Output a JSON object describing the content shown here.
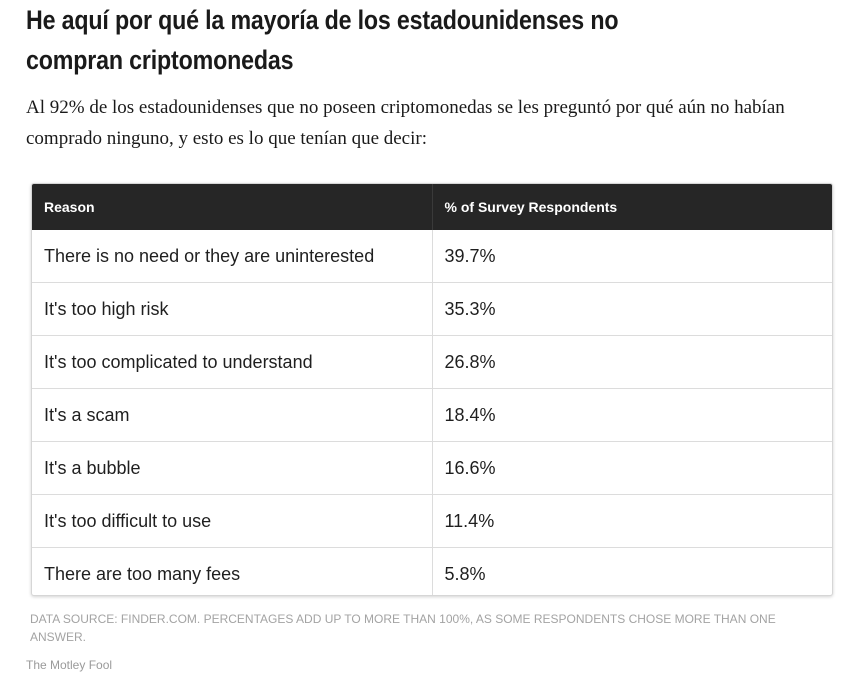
{
  "article": {
    "headline": "He aquí por qué la mayoría de los estadounidenses no compran criptomonedas",
    "intro": "Al 92% de los estadounidenses que no poseen criptomonedas se les preguntó por qué aún no habían comprado ninguno, y esto es lo que tenían que decir:"
  },
  "table": {
    "headers": [
      "Reason",
      "% of Survey Respondents"
    ],
    "rows": [
      [
        "There is no need or they are uninterested",
        "39.7%"
      ],
      [
        "It's too high risk",
        "35.3%"
      ],
      [
        "It's too complicated to understand",
        "26.8%"
      ],
      [
        "It's a scam",
        "18.4%"
      ],
      [
        "It's a bubble",
        "16.6%"
      ],
      [
        "It's too difficult to use",
        "11.4%"
      ],
      [
        "There are too many fees",
        "5.8%"
      ]
    ]
  },
  "footer": {
    "source_note": "DATA SOURCE: FINDER.COM. PERCENTAGES ADD UP TO MORE THAN 100%, AS SOME RESPONDENTS CHOSE MORE THAN ONE ANSWER.",
    "brand": "The Motley Fool"
  }
}
